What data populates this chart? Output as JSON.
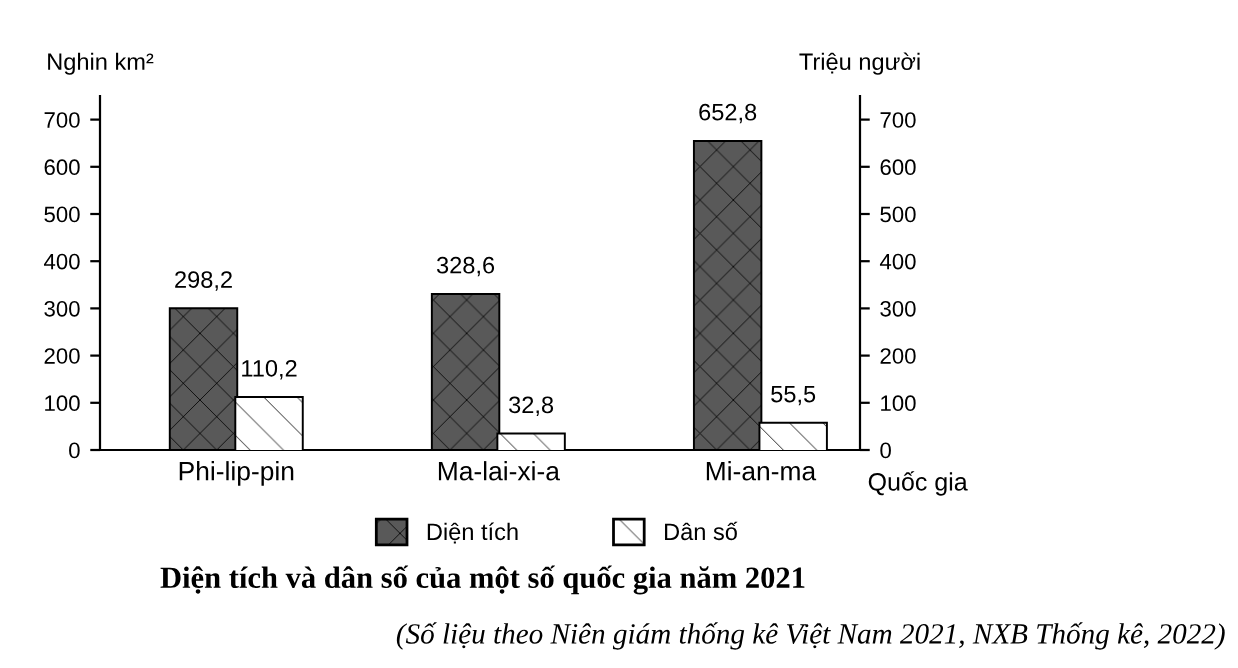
{
  "chart_data": {
    "type": "bar",
    "title": "Diện tích và dân số của một số quốc gia năm 2021",
    "ylabel": "Nghin km²",
    "y2label": "Triệu người",
    "xlabel": "Quốc gia",
    "categories": [
      "Phi-lip-pin",
      "Ma-lai-xi-a",
      "Mi-an-ma"
    ],
    "series": [
      {
        "name": "Diện tích",
        "color": "#595959",
        "values": [
          298.2,
          328.6,
          652.8
        ],
        "value_labels": [
          "298,2",
          "328,6",
          "652,8"
        ]
      },
      {
        "name": "Dân số",
        "color": "#ffffff",
        "axis": "y2",
        "values": [
          110.2,
          32.8,
          55.5
        ],
        "value_labels": [
          "110,2",
          "32,8",
          "55,5"
        ]
      }
    ],
    "ylim": [
      0,
      750
    ],
    "yticks": [
      0,
      100,
      200,
      300,
      400,
      500,
      600,
      700
    ],
    "y2lim": [
      0,
      750
    ],
    "y2ticks": [
      0,
      100,
      200,
      300,
      400,
      500,
      600,
      700
    ],
    "grid": false,
    "legend": "bottom",
    "annotations": [
      "(Số liệu theo Niên giám thống kê Việt Nam 2021, NXB Thống kê, 2022)"
    ]
  }
}
